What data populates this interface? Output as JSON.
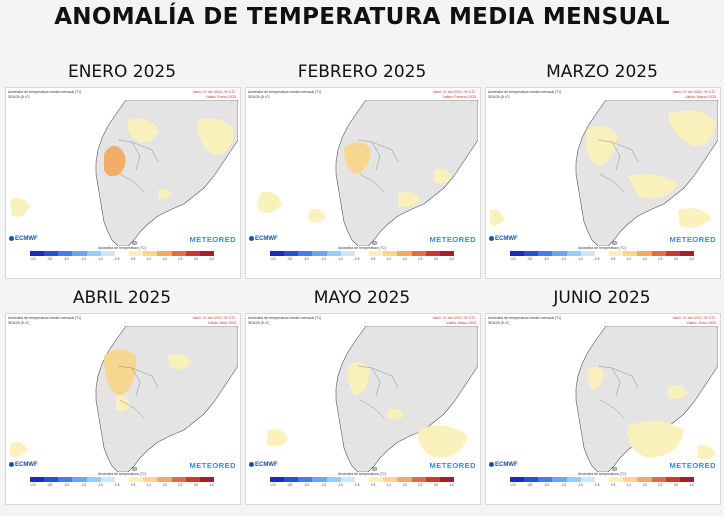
{
  "title": "ANOMALÍA DE TEMPERATURA MEDIA MENSUAL",
  "header": {
    "map_title": "Anomalía de temperatura media mensual (°C)",
    "model": "SEAS5 (5.4°)",
    "init": "Inicio: 01 dic 2024, 00 UTC"
  },
  "panels": [
    {
      "title": "ENERO 2025",
      "valid": "Válido: Enero 2025"
    },
    {
      "title": "FEBRERO 2025",
      "valid": "Válido: Febrero 2025"
    },
    {
      "title": "MARZO 2025",
      "valid": "Válido: Marzo 2025"
    },
    {
      "title": "ABRIL 2025",
      "valid": "Válido: Abril 2025"
    },
    {
      "title": "MAYO 2025",
      "valid": "Válido: Mayo 2025"
    },
    {
      "title": "JUNIO 2025",
      "valid": "Válido: Junio 2025"
    }
  ],
  "logos": {
    "ecmwf": "ECMWF",
    "meteored": "METEORED"
  },
  "colorbar": {
    "label": "Anomalía de temperatura (°C)",
    "ticks": [
      "-4.0",
      "-3.5",
      "-3.0",
      "-1.5",
      "-1.0",
      "-0.5",
      "0.5",
      "1.0",
      "1.5",
      "2.5",
      "3.0",
      "4.0"
    ],
    "colors": [
      "#1a2bb8",
      "#2553d6",
      "#3f7fe8",
      "#6aa6f2",
      "#9ccbf6",
      "#cfe6fb",
      "#ffffff",
      "#fbf0b8",
      "#f8d68a",
      "#f2ab62",
      "#e46b47",
      "#c93a34",
      "#a2202c"
    ]
  }
}
